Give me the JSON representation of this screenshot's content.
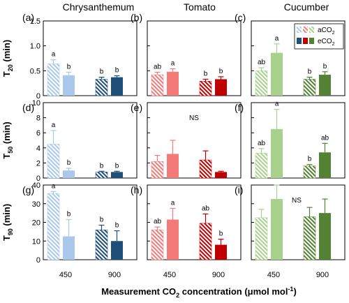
{
  "figure": {
    "column_titles": [
      "Chrysanthemum",
      "Tomato",
      "Cucumber"
    ],
    "row_labels": [
      {
        "main": "T",
        "sub": "20",
        "unit": " (min)"
      },
      {
        "main": "T",
        "sub": "50",
        "unit": " (min)"
      },
      {
        "main": "T",
        "sub": "90",
        "unit": " (min)"
      }
    ],
    "xlabel_main": "Measurement CO",
    "xlabel_sub": "2",
    "xlabel_tail": " concentration (μmol mol",
    "xlabel_sup": "-1",
    "xlabel_end": ")",
    "legend": [
      {
        "main": "aCO",
        "sub": "2",
        "pattern": "hatched"
      },
      {
        "main": "eCO",
        "sub": "2",
        "pattern": "solid"
      }
    ],
    "colors": {
      "chrysanthemum": {
        "a450": "#a9c8ec",
        "e450": "#a9c8ec",
        "a900": "#1f4e79",
        "e900": "#1f4e79"
      },
      "tomato": {
        "a450": "#f47a7a",
        "e450": "#f47a7a",
        "a900": "#c00000",
        "e900": "#c00000"
      },
      "cucumber": {
        "a450": "#a9d18e",
        "e450": "#a9d18e",
        "a900": "#548235",
        "e900": "#548235"
      }
    }
  },
  "chart_data": [
    {
      "type": "bar",
      "panel": "(a)",
      "species": "Chrysanthemum",
      "metric": "T20",
      "ylim": [
        0,
        1.5
      ],
      "yticks": [
        0,
        0.5,
        1.0,
        1.5
      ],
      "yticklabels": [
        "0",
        "0.5",
        "1.0",
        "1.5"
      ],
      "categories": [
        "450",
        "900"
      ],
      "series": [
        {
          "name": "aCO2",
          "values": [
            0.64,
            0.33
          ],
          "errors": [
            0.08,
            0.04
          ],
          "letters": [
            "a",
            "b"
          ]
        },
        {
          "name": "eCO2",
          "values": [
            0.41,
            0.37
          ],
          "errors": [
            0.06,
            0.03
          ],
          "letters": [
            "b",
            "b"
          ]
        }
      ]
    },
    {
      "type": "bar",
      "panel": "(b)",
      "species": "Tomato",
      "metric": "T20",
      "ylim": [
        0,
        1.5
      ],
      "yticks": [
        0,
        0.5,
        1.0,
        1.5
      ],
      "yticklabels": [
        "",
        "",
        "",
        ""
      ],
      "categories": [
        "450",
        "900"
      ],
      "series": [
        {
          "name": "aCO2",
          "values": [
            0.42,
            0.29
          ],
          "errors": [
            0.05,
            0.04
          ],
          "letters": [
            "ab",
            "b"
          ]
        },
        {
          "name": "eCO2",
          "values": [
            0.48,
            0.33
          ],
          "errors": [
            0.06,
            0.05
          ],
          "letters": [
            "a",
            "b"
          ]
        }
      ]
    },
    {
      "type": "bar",
      "panel": "(c)",
      "species": "Cucumber",
      "metric": "T20",
      "ylim": [
        0,
        1.5
      ],
      "yticks": [
        0,
        0.5,
        1.0,
        1.5
      ],
      "yticklabels": [
        "",
        "",
        "",
        ""
      ],
      "categories": [
        "450",
        "900"
      ],
      "series": [
        {
          "name": "aCO2",
          "values": [
            0.5,
            0.33
          ],
          "errors": [
            0.06,
            0.04
          ],
          "letters": [
            "ab",
            "b"
          ]
        },
        {
          "name": "eCO2",
          "values": [
            0.86,
            0.42
          ],
          "errors": [
            0.18,
            0.06
          ],
          "letters": [
            "a",
            "b"
          ]
        }
      ]
    },
    {
      "type": "bar",
      "panel": "(d)",
      "species": "Chrysanthemum",
      "metric": "T50",
      "ylim": [
        0,
        10
      ],
      "yticks": [
        0,
        2,
        4,
        6,
        8,
        10
      ],
      "yticklabels": [
        "0",
        "2",
        "4",
        "6",
        "8",
        "10"
      ],
      "categories": [
        "450",
        "900"
      ],
      "series": [
        {
          "name": "aCO2",
          "values": [
            4.5,
            0.8
          ],
          "errors": [
            1.8,
            0.1
          ],
          "letters": [
            "a",
            "b"
          ]
        },
        {
          "name": "eCO2",
          "values": [
            1.0,
            0.8
          ],
          "errors": [
            0.3,
            0.1
          ],
          "letters": [
            "b",
            "b"
          ]
        }
      ]
    },
    {
      "type": "bar",
      "panel": "(e)",
      "species": "Tomato",
      "metric": "T50",
      "ylim": [
        0,
        10
      ],
      "yticks": [
        0,
        2,
        4,
        6,
        8,
        10
      ],
      "yticklabels": [
        "",
        "",
        "",
        "",
        "",
        ""
      ],
      "categories": [
        "450",
        "900"
      ],
      "annotation": "NS",
      "series": [
        {
          "name": "aCO2",
          "values": [
            2.2,
            2.4
          ],
          "errors": [
            0.8,
            1.2
          ],
          "letters": [
            "",
            ""
          ]
        },
        {
          "name": "eCO2",
          "values": [
            3.2,
            0.8
          ],
          "errors": [
            1.8,
            0.1
          ],
          "letters": [
            "",
            ""
          ]
        }
      ]
    },
    {
      "type": "bar",
      "panel": "(f)",
      "species": "Cucumber",
      "metric": "T50",
      "ylim": [
        0,
        10
      ],
      "yticks": [
        0,
        2,
        4,
        6,
        8,
        10
      ],
      "yticklabels": [
        "",
        "",
        "",
        "",
        "",
        ""
      ],
      "categories": [
        "450",
        "900"
      ],
      "series": [
        {
          "name": "aCO2",
          "values": [
            3.3,
            1.6
          ],
          "errors": [
            0.6,
            0.2
          ],
          "letters": [
            "ab",
            "b"
          ]
        },
        {
          "name": "eCO2",
          "values": [
            6.5,
            3.4
          ],
          "errors": [
            2.6,
            1.2
          ],
          "letters": [
            "a",
            "ab"
          ]
        }
      ]
    },
    {
      "type": "bar",
      "panel": "(g)",
      "species": "Chrysanthemum",
      "metric": "T90",
      "ylim": [
        0,
        40
      ],
      "yticks": [
        0,
        10,
        20,
        30,
        40
      ],
      "yticklabels": [
        "0",
        "10",
        "20",
        "30",
        "40"
      ],
      "categories": [
        "450",
        "900"
      ],
      "series": [
        {
          "name": "aCO2",
          "values": [
            35.5,
            16
          ],
          "errors": [
            1.0,
            2.5
          ],
          "letters": [
            "a",
            "b"
          ]
        },
        {
          "name": "eCO2",
          "values": [
            12.5,
            10
          ],
          "errors": [
            9,
            5.5
          ],
          "letters": [
            "b",
            "b"
          ]
        }
      ]
    },
    {
      "type": "bar",
      "panel": "(h)",
      "species": "Tomato",
      "metric": "T90",
      "ylim": [
        0,
        40
      ],
      "yticks": [
        0,
        10,
        20,
        30,
        40
      ],
      "yticklabels": [
        "",
        "",
        "",
        "",
        ""
      ],
      "categories": [
        "450",
        "900"
      ],
      "series": [
        {
          "name": "aCO2",
          "values": [
            16,
            19.5
          ],
          "errors": [
            1.5,
            5
          ],
          "letters": [
            "ab",
            "ab"
          ]
        },
        {
          "name": "eCO2",
          "values": [
            21.5,
            8
          ],
          "errors": [
            6,
            3
          ],
          "letters": [
            "a",
            "b"
          ]
        }
      ]
    },
    {
      "type": "bar",
      "panel": "(i)",
      "species": "Cucumber",
      "metric": "T90",
      "ylim": [
        0,
        40
      ],
      "yticks": [
        0,
        10,
        20,
        30,
        40
      ],
      "yticklabels": [
        "",
        "",
        "",
        "",
        ""
      ],
      "categories": [
        "450",
        "900"
      ],
      "annotation": "NS",
      "series": [
        {
          "name": "aCO2",
          "values": [
            22.5,
            23
          ],
          "errors": [
            4.5,
            5
          ],
          "letters": [
            "",
            ""
          ]
        },
        {
          "name": "eCO2",
          "values": [
            32.5,
            25
          ],
          "errors": [
            7.5,
            7.5
          ],
          "letters": [
            "",
            ""
          ]
        }
      ]
    }
  ]
}
